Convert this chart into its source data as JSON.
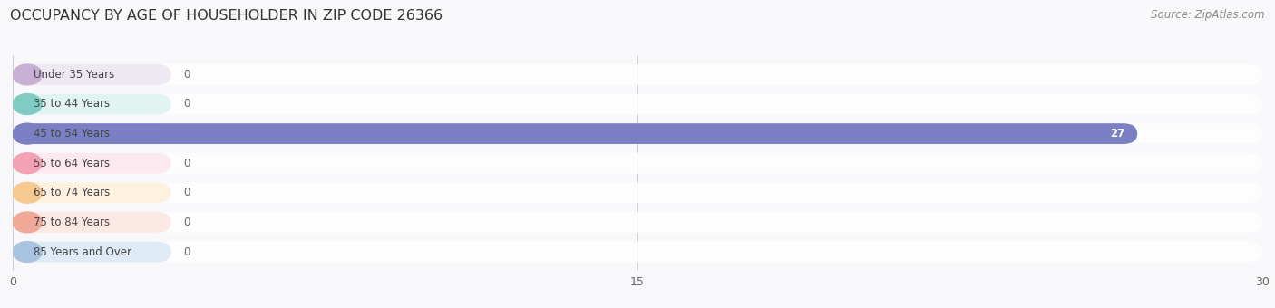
{
  "title": "OCCUPANCY BY AGE OF HOUSEHOLDER IN ZIP CODE 26366",
  "source": "Source: ZipAtlas.com",
  "categories": [
    "Under 35 Years",
    "35 to 44 Years",
    "45 to 54 Years",
    "55 to 64 Years",
    "65 to 74 Years",
    "75 to 84 Years",
    "85 Years and Over"
  ],
  "values": [
    0,
    0,
    27,
    0,
    0,
    0,
    0
  ],
  "bar_colors": [
    "#c9afd4",
    "#7eccc4",
    "#7b7fc4",
    "#f4a0b5",
    "#f5c990",
    "#f0a898",
    "#a8c4e0"
  ],
  "label_bg_colors": [
    "#ede8f2",
    "#e0f4f2",
    "#e8e9f6",
    "#fce8ef",
    "#fdf2e0",
    "#fce8e4",
    "#deeaf5"
  ],
  "row_bg_color": "#f5f5f8",
  "xlim": [
    0,
    30
  ],
  "xticks": [
    0,
    15,
    30
  ],
  "fig_bg_color": "#f8f8fb",
  "title_fontsize": 11.5,
  "source_fontsize": 8.5,
  "bar_value_27_color": "#7b7fc4"
}
